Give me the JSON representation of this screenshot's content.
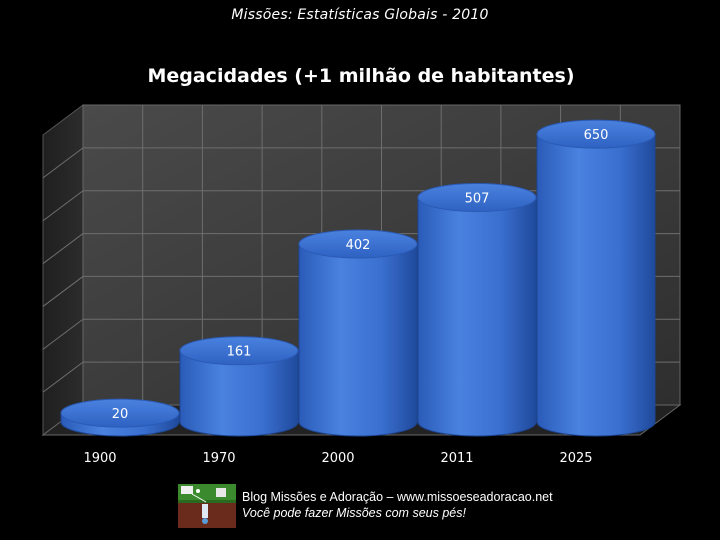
{
  "header": {
    "text": "Missões: Estatísticas Globais - 2010"
  },
  "chart_data": {
    "type": "bar",
    "title": "Megacidades (+1 milhão de habitantes)",
    "categories": [
      "1900",
      "1970",
      "2000",
      "2011",
      "2025"
    ],
    "values": [
      20,
      161,
      402,
      507,
      650
    ],
    "data_labels": [
      "20",
      "161",
      "402",
      "507",
      "650"
    ],
    "ylim": [
      0,
      700
    ],
    "grid": true,
    "legend": "none",
    "colors": {
      "bar_body": "#3a6fd0",
      "bar_top": "#3d74d6",
      "bar_dark": "#1f4fa6",
      "wall": "#3c3c3c",
      "grid": "#707070"
    }
  },
  "footer": {
    "line1": "Blog Missões e Adoração – www.missoeseadoracao.net",
    "line2": "Você pode fazer Missões com seus pés!"
  }
}
